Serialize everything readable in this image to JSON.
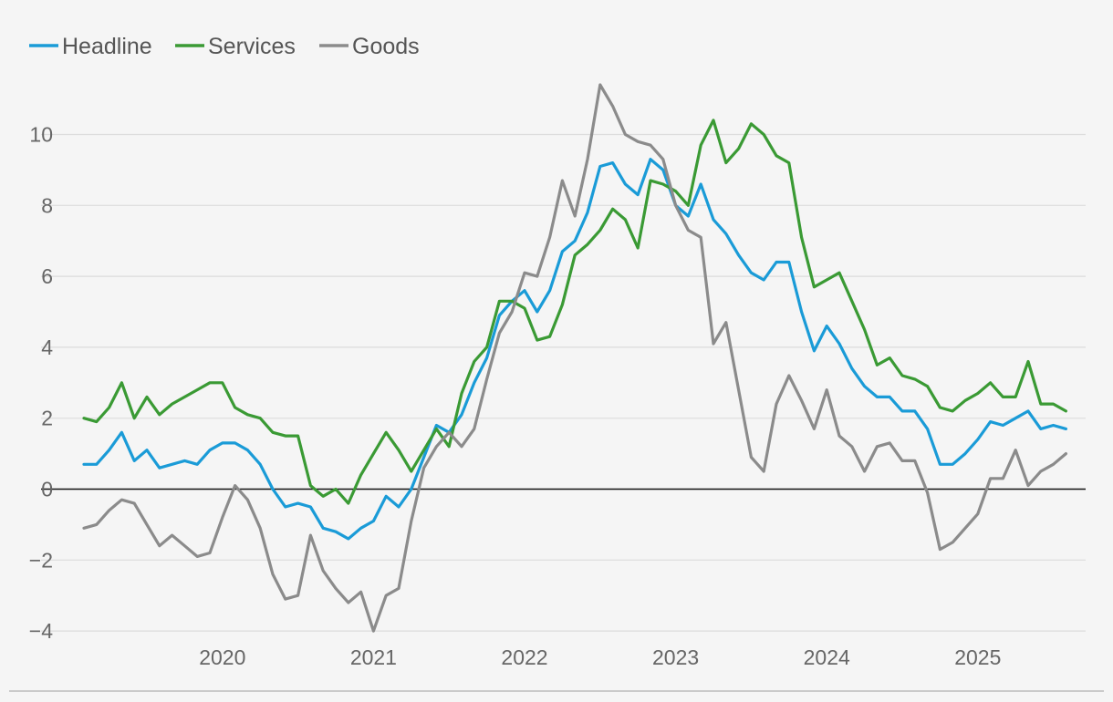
{
  "chart_data": {
    "type": "line",
    "title": "",
    "xlabel": "",
    "ylabel": "",
    "ylim": [
      -4,
      11.4
    ],
    "yticks": [
      -4,
      -2,
      0,
      2,
      4,
      6,
      8,
      10
    ],
    "ytick_labels": [
      "−4",
      "−2",
      "0",
      "2",
      "4",
      "6",
      "8",
      "10"
    ],
    "x_start": "2019-02",
    "x_period": "monthly",
    "xticks": [
      {
        "label": "2020",
        "index": 11
      },
      {
        "label": "2021",
        "index": 23
      },
      {
        "label": "2022",
        "index": 35
      },
      {
        "label": "2023",
        "index": 47
      },
      {
        "label": "2024",
        "index": 59
      },
      {
        "label": "2025",
        "index": 71
      }
    ],
    "grid": true,
    "legend_position": "top-left",
    "series": [
      {
        "name": "Headline",
        "color": "#1a9bd7",
        "values": [
          0.7,
          0.7,
          1.1,
          1.6,
          0.8,
          1.1,
          0.6,
          0.7,
          0.8,
          0.7,
          1.1,
          1.3,
          1.3,
          1.1,
          0.7,
          0.0,
          -0.5,
          -0.4,
          -0.5,
          -1.1,
          -1.2,
          -1.4,
          -1.1,
          -0.9,
          -0.2,
          -0.5,
          0.0,
          0.9,
          1.8,
          1.6,
          2.1,
          3.0,
          3.7,
          4.9,
          5.3,
          5.6,
          5.0,
          5.6,
          6.7,
          7.0,
          7.8,
          9.1,
          9.2,
          8.6,
          8.3,
          9.3,
          9.0,
          8.0,
          7.7,
          8.6,
          7.6,
          7.2,
          6.6,
          6.1,
          5.9,
          6.4,
          6.4,
          5.0,
          3.9,
          4.6,
          4.1,
          3.4,
          2.9,
          2.6,
          2.6,
          2.2,
          2.2,
          1.7,
          0.7,
          0.7,
          1.0,
          1.4,
          1.9,
          1.8,
          2.0,
          2.2,
          1.7,
          1.8,
          1.7
        ]
      },
      {
        "name": "Services",
        "color": "#3a9a34",
        "values": [
          2.0,
          1.9,
          2.3,
          3.0,
          2.0,
          2.6,
          2.1,
          2.4,
          2.6,
          2.8,
          3.0,
          3.0,
          2.3,
          2.1,
          2.0,
          1.6,
          1.5,
          1.5,
          0.1,
          -0.2,
          0.0,
          -0.4,
          0.4,
          1.0,
          1.6,
          1.1,
          0.5,
          1.1,
          1.7,
          1.2,
          2.7,
          3.6,
          4.0,
          5.3,
          5.3,
          5.1,
          4.2,
          4.3,
          5.2,
          6.6,
          6.9,
          7.3,
          7.9,
          7.6,
          6.8,
          8.7,
          8.6,
          8.4,
          8.0,
          9.7,
          10.4,
          9.2,
          9.6,
          10.3,
          10.0,
          9.4,
          9.2,
          7.1,
          5.7,
          5.9,
          6.1,
          5.3,
          4.5,
          3.5,
          3.7,
          3.2,
          3.1,
          2.9,
          2.3,
          2.2,
          2.5,
          2.7,
          3.0,
          2.6,
          2.6,
          3.6,
          2.4,
          2.4,
          2.2
        ]
      },
      {
        "name": "Goods",
        "color": "#8b8b8b",
        "values": [
          -1.1,
          -1.0,
          -0.6,
          -0.3,
          -0.4,
          -1.0,
          -1.6,
          -1.3,
          -1.6,
          -1.9,
          -1.8,
          -0.8,
          0.1,
          -0.3,
          -1.1,
          -2.4,
          -3.1,
          -3.0,
          -1.3,
          -2.3,
          -2.8,
          -3.2,
          -2.9,
          -4.0,
          -3.0,
          -2.8,
          -0.9,
          0.6,
          1.2,
          1.6,
          1.2,
          1.7,
          3.1,
          4.4,
          5.0,
          6.1,
          6.0,
          7.1,
          8.7,
          7.7,
          9.3,
          11.4,
          10.8,
          10.0,
          9.8,
          9.7,
          9.3,
          8.0,
          7.3,
          7.1,
          4.1,
          4.7,
          2.8,
          0.9,
          0.5,
          2.4,
          3.2,
          2.5,
          1.7,
          2.8,
          1.5,
          1.2,
          0.5,
          1.2,
          1.3,
          0.8,
          0.8,
          -0.1,
          -1.7,
          -1.5,
          -1.1,
          -0.7,
          0.3,
          0.3,
          1.1,
          0.1,
          0.5,
          0.7,
          1.0
        ]
      }
    ]
  }
}
